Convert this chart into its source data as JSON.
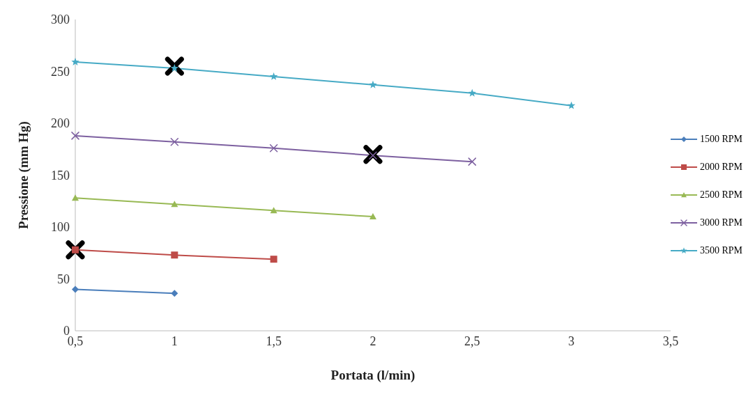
{
  "chart_data": {
    "type": "line",
    "xlabel": "Portata (l/min)",
    "ylabel": "Pressione  (mm Hg)",
    "xlim": [
      0.5,
      3.5
    ],
    "xticks": [
      {
        "value": 0.5,
        "label": "0,5"
      },
      1,
      {
        "value": 1.5,
        "label": "1,5"
      },
      2,
      {
        "value": 2.5,
        "label": "2,5"
      },
      3,
      {
        "value": 3.5,
        "label": "3,5"
      }
    ],
    "ylim": [
      0,
      300
    ],
    "yticks": [
      0,
      50,
      100,
      150,
      200,
      250,
      300
    ],
    "grid": false,
    "legend": "right",
    "series": [
      {
        "name": "1500 RPM",
        "color": "#4a7ebb",
        "marker": "diamond",
        "x": [
          0.5,
          1
        ],
        "values": [
          40,
          36
        ]
      },
      {
        "name": "2000 RPM",
        "color": "#be4b48",
        "marker": "square",
        "x": [
          0.5,
          1,
          1.5
        ],
        "values": [
          78,
          73,
          69
        ]
      },
      {
        "name": "2500 RPM",
        "color": "#98b954",
        "marker": "triangle",
        "x": [
          0.5,
          1,
          1.5,
          2
        ],
        "values": [
          128,
          122,
          116,
          110
        ]
      },
      {
        "name": "3000 RPM",
        "color": "#7d60a0",
        "marker": "cross",
        "x": [
          0.5,
          1,
          1.5,
          2,
          2.5
        ],
        "values": [
          188,
          182,
          176,
          169,
          163
        ]
      },
      {
        "name": "3500 RPM",
        "color": "#46aac5",
        "marker": "star",
        "x": [
          0.5,
          1,
          1.5,
          2,
          2.5,
          3
        ],
        "values": [
          259,
          253,
          245,
          237,
          229,
          217
        ]
      },
      {
        "type": "scatter",
        "color": "#000000",
        "marker": "cross",
        "x": [
          0.5,
          1,
          2
        ],
        "values": [
          78,
          255,
          170
        ]
      }
    ]
  }
}
